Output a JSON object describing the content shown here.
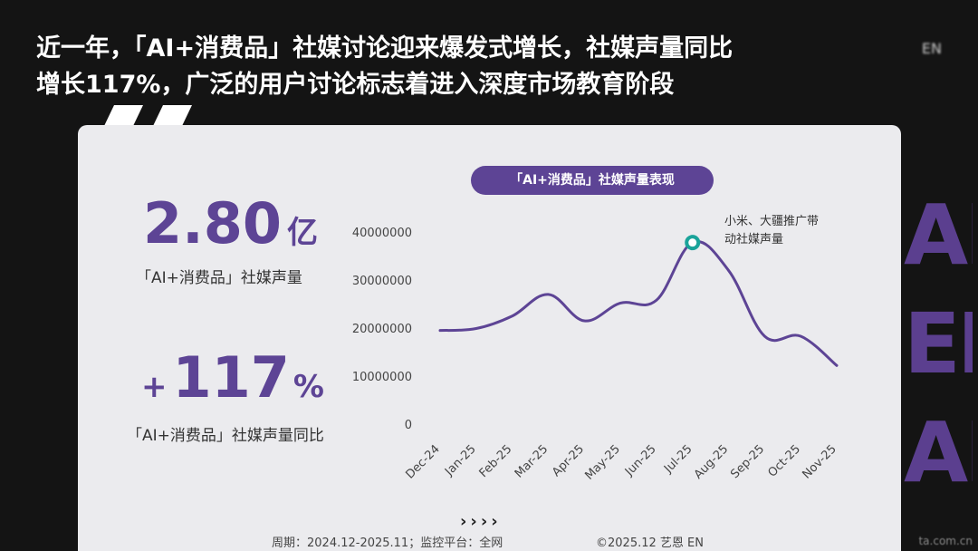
{
  "headline": {
    "line1": "近一年，「AI+消费品」社媒讨论迎来爆发式增长，社媒声量同比",
    "line2": "增长117%，广泛的用户讨论标志着进入深度市场教育阶段"
  },
  "top_right_text": "EN",
  "background_letters": [
    "AL",
    "EN",
    "AI)"
  ],
  "kpis": [
    {
      "value": "2.80",
      "unit": "亿",
      "label": "「AI+消费品」社媒声量"
    },
    {
      "sign": "+",
      "value": "117",
      "unit": "%",
      "label": "「AI+消费品」社媒声量同比"
    }
  ],
  "footer": {
    "period": "周期：2024.12-2025.11；监控平台：全网",
    "copyright": "©2025.12 艺恩 EN",
    "arrows": "››››",
    "watermark": "ta.com.cn"
  },
  "colors": {
    "accent": "#5d4495",
    "line": "#5d4495",
    "marker": "#1aa39a",
    "panel": "#ebebee",
    "background": "#141414"
  },
  "chart_data": {
    "type": "line",
    "title": "「AI+消费品」社媒声量表现",
    "categories": [
      "Dec-24",
      "Jan-25",
      "Feb-25",
      "Mar-25",
      "Apr-25",
      "May-25",
      "Jun-25",
      "Jul-25",
      "Aug-25",
      "Sep-25",
      "Oct-25",
      "Nov-25"
    ],
    "values": [
      19500000,
      19900000,
      22500000,
      27000000,
      21500000,
      25200000,
      25800000,
      37800000,
      32000000,
      18300000,
      18300000,
      12200000
    ],
    "yticks": [
      0,
      10000000,
      20000000,
      30000000,
      40000000
    ],
    "ytick_labels": [
      "0",
      "10000000",
      "20000000",
      "30000000",
      "40000000"
    ],
    "ylim": [
      0,
      40000000
    ],
    "xlabel": "",
    "ylabel": "",
    "grid": false,
    "highlight": {
      "category": "Jul-25",
      "value": 37800000,
      "annotation": [
        "小米、大疆推广带",
        "动社媒声量"
      ]
    }
  }
}
